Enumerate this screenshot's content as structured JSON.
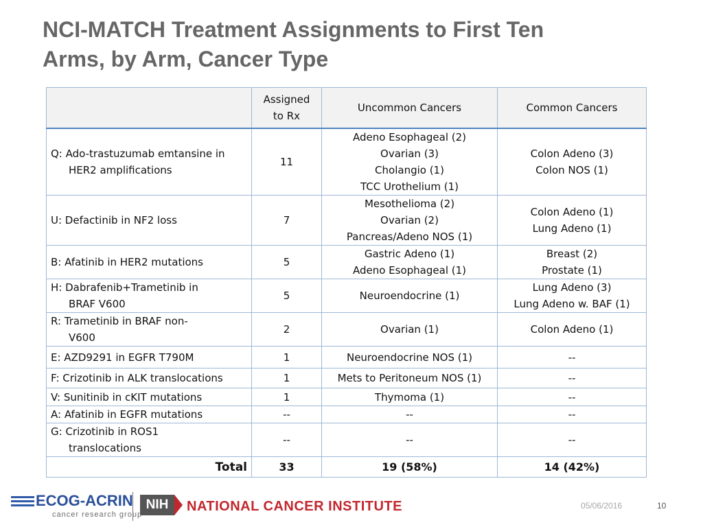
{
  "title": {
    "line1": "NCI-MATCH Treatment Assignments to First Ten",
    "line2": "Arms, by Arm, Cancer Type"
  },
  "table": {
    "headers": {
      "arm": "",
      "assigned_line1": "Assigned",
      "assigned_line2": "to Rx",
      "uncommon": "Uncommon Cancers",
      "common": "Common Cancers"
    },
    "rows": [
      {
        "arm": [
          "Q:  Ado-trastuzumab emtansine in",
          "HER2 amplifications"
        ],
        "assigned": "11",
        "uncommon": [
          "Adeno Esophageal (2)",
          "Ovarian (3)",
          "Cholangio (1)",
          "TCC Urothelium (1)"
        ],
        "common": [
          "Colon Adeno (3)",
          "Colon NOS (1)"
        ]
      },
      {
        "arm": [
          "U:  Defactinib in NF2 loss"
        ],
        "assigned": "7",
        "uncommon": [
          "Mesothelioma (2)",
          "Ovarian (2)",
          "Pancreas/Adeno NOS (1)"
        ],
        "common": [
          "Colon Adeno (1)",
          "Lung Adeno (1)"
        ]
      },
      {
        "arm": [
          "B:  Afatinib in HER2 mutations"
        ],
        "assigned": "5",
        "uncommon": [
          "Gastric Adeno (1)",
          "Adeno Esophageal (1)"
        ],
        "common": [
          "Breast (2)",
          "Prostate (1)"
        ]
      },
      {
        "arm": [
          "H:  Dabrafenib+Trametinib in",
          "BRAF V600"
        ],
        "assigned": "5",
        "uncommon": [
          "Neuroendocrine (1)"
        ],
        "common": [
          "Lung Adeno (3)",
          "Lung Adeno w. BAF (1)"
        ]
      },
      {
        "arm": [
          "R:  Trametinib in BRAF non-",
          "V600"
        ],
        "assigned": "2",
        "uncommon": [
          "Ovarian (1)"
        ],
        "common": [
          "Colon Adeno (1)"
        ]
      },
      {
        "arm": [
          "E:  AZD9291 in EGFR T790M"
        ],
        "assigned": "1",
        "uncommon": [
          "Neuroendocrine NOS (1)"
        ],
        "common": [
          "--"
        ]
      },
      {
        "arm": [
          "F:  Crizotinib in ALK translocations"
        ],
        "assigned": "1",
        "uncommon": [
          "Mets to Peritoneum NOS (1)"
        ],
        "common": [
          "--"
        ]
      },
      {
        "arm": [
          "V:  Sunitinib in cKIT mutations"
        ],
        "assigned": "1",
        "uncommon": [
          "Thymoma (1)"
        ],
        "common": [
          "--"
        ]
      },
      {
        "arm": [
          "A:  Afatinib in EGFR mutations"
        ],
        "assigned": "--",
        "uncommon": [
          "--"
        ],
        "common": [
          "--"
        ]
      },
      {
        "arm": [
          "G: Crizotinib in ROS1",
          "translocations"
        ],
        "assigned": "--",
        "uncommon": [
          "--"
        ],
        "common": [
          "--"
        ]
      }
    ],
    "total": {
      "label": "Total",
      "assigned": "33",
      "uncommon": "19 (58%)",
      "common": "14 (42%)"
    }
  },
  "footer": {
    "ecog_wordmark": "ECOG-ACRIN",
    "ecog_tagline": "cancer research group",
    "nih_mark": "NIH",
    "nci_name": "NATIONAL CANCER INSTITUTE",
    "date": "05/06/2016",
    "page_number": "10"
  },
  "colors": {
    "title": "#666666",
    "table_border": "#9db7d6",
    "header_rule": "#4f81bd",
    "nci_red": "#c1272d",
    "ecog_blue": "#2a4f9a"
  }
}
